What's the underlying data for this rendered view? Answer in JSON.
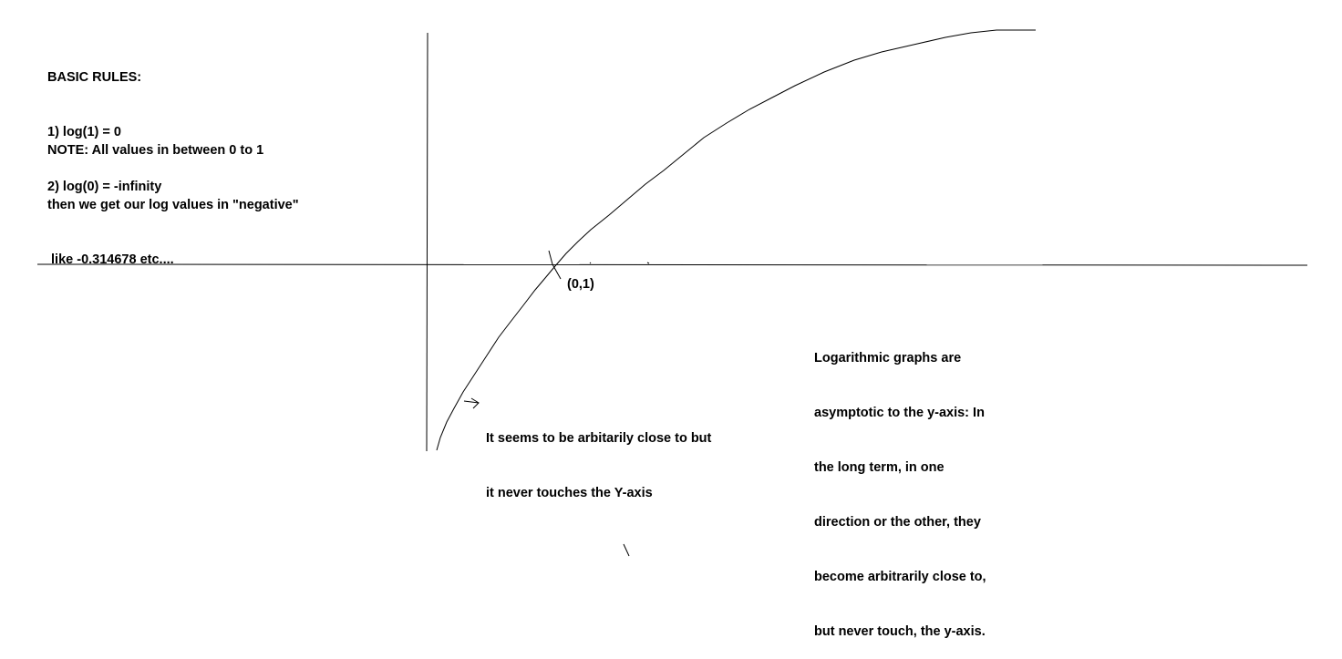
{
  "rules": {
    "heading": "BASIC RULES:",
    "items": [
      "1) log(1) = 0",
      "2) log(0) = -infinity"
    ]
  },
  "note": {
    "lines": [
      "NOTE: All values in between 0 to 1",
      "then we get our log values in \"negative\"",
      " like -0.314678 etc...."
    ]
  },
  "point_label": "(0,1)",
  "annotation_near_curve": {
    "lines": [
      "It seems to be arbitarily close to but",
      "it never touches the Y-axis"
    ]
  },
  "annotation_right": {
    "lines": [
      "Logarithmic graphs are",
      "asymptotic to the y-axis: In",
      "the long term, in one",
      "direction or the other, they",
      "become arbitrarily close to,",
      "but never touch, the y-axis."
    ]
  },
  "colors": {
    "ink": "#000000",
    "background": "#ffffff"
  }
}
